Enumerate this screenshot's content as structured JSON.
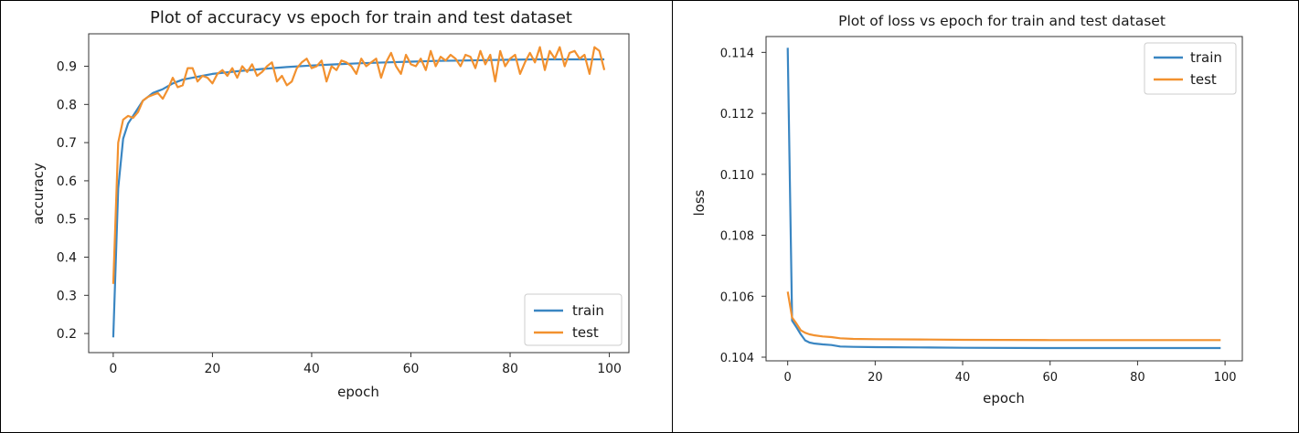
{
  "colors": {
    "train": "#3a86c2",
    "test": "#f2912f"
  },
  "charts": [
    {
      "id": "accuracy",
      "type": "line",
      "title": "Plot of accuracy vs epoch for train and test dataset",
      "xlabel": "epoch",
      "ylabel": "accuracy",
      "xlim": [
        -4.95,
        103.95
      ],
      "ylim": [
        0.15,
        0.985
      ],
      "xticks": [
        0,
        20,
        40,
        60,
        80,
        100
      ],
      "yticks": [
        0.2,
        0.3,
        0.4,
        0.5,
        0.6,
        0.7,
        0.8,
        0.9
      ],
      "ytick_labels": [
        "0.2",
        "0.3",
        "0.4",
        "0.5",
        "0.6",
        "0.7",
        "0.8",
        "0.9"
      ],
      "legend": {
        "position": "lower-right",
        "entries": [
          "train",
          "test"
        ]
      },
      "series": [
        {
          "name": "train",
          "color_key": "train",
          "x": [
            0,
            1,
            2,
            3,
            4,
            5,
            6,
            7,
            8,
            9,
            10,
            12,
            14,
            16,
            18,
            20,
            25,
            30,
            35,
            40,
            45,
            50,
            55,
            60,
            65,
            70,
            75,
            80,
            85,
            90,
            95,
            99
          ],
          "y": [
            0.19,
            0.58,
            0.71,
            0.75,
            0.77,
            0.79,
            0.81,
            0.82,
            0.83,
            0.835,
            0.84,
            0.855,
            0.865,
            0.87,
            0.875,
            0.88,
            0.887,
            0.893,
            0.898,
            0.902,
            0.905,
            0.908,
            0.91,
            0.912,
            0.914,
            0.915,
            0.916,
            0.917,
            0.918,
            0.918,
            0.918,
            0.918
          ]
        },
        {
          "name": "test",
          "color_key": "test",
          "x": [
            0,
            1,
            2,
            3,
            4,
            5,
            6,
            7,
            8,
            9,
            10,
            11,
            12,
            13,
            14,
            15,
            16,
            17,
            18,
            19,
            20,
            21,
            22,
            23,
            24,
            25,
            26,
            27,
            28,
            29,
            30,
            31,
            32,
            33,
            34,
            35,
            36,
            37,
            38,
            39,
            40,
            41,
            42,
            43,
            44,
            45,
            46,
            47,
            48,
            49,
            50,
            51,
            52,
            53,
            54,
            55,
            56,
            57,
            58,
            59,
            60,
            61,
            62,
            63,
            64,
            65,
            66,
            67,
            68,
            69,
            70,
            71,
            72,
            73,
            74,
            75,
            76,
            77,
            78,
            79,
            80,
            81,
            82,
            83,
            84,
            85,
            86,
            87,
            88,
            89,
            90,
            91,
            92,
            93,
            94,
            95,
            96,
            97,
            98,
            99
          ],
          "y": [
            0.33,
            0.7,
            0.76,
            0.77,
            0.765,
            0.78,
            0.81,
            0.82,
            0.825,
            0.83,
            0.815,
            0.84,
            0.87,
            0.845,
            0.85,
            0.895,
            0.895,
            0.86,
            0.875,
            0.87,
            0.855,
            0.88,
            0.89,
            0.875,
            0.895,
            0.87,
            0.9,
            0.885,
            0.905,
            0.875,
            0.885,
            0.9,
            0.91,
            0.86,
            0.875,
            0.85,
            0.86,
            0.895,
            0.91,
            0.92,
            0.895,
            0.9,
            0.915,
            0.86,
            0.9,
            0.89,
            0.915,
            0.91,
            0.9,
            0.88,
            0.92,
            0.9,
            0.91,
            0.92,
            0.87,
            0.91,
            0.935,
            0.9,
            0.88,
            0.93,
            0.905,
            0.9,
            0.92,
            0.89,
            0.94,
            0.9,
            0.925,
            0.915,
            0.93,
            0.92,
            0.9,
            0.93,
            0.925,
            0.895,
            0.94,
            0.905,
            0.93,
            0.86,
            0.94,
            0.9,
            0.92,
            0.93,
            0.88,
            0.91,
            0.935,
            0.91,
            0.95,
            0.89,
            0.94,
            0.92,
            0.95,
            0.9,
            0.935,
            0.94,
            0.92,
            0.93,
            0.88,
            0.95,
            0.94,
            0.89
          ]
        }
      ]
    },
    {
      "id": "loss",
      "type": "line",
      "title": "Plot of loss vs epoch for train and test dataset",
      "xlabel": "epoch",
      "ylabel": "loss",
      "xlim": [
        -4.95,
        103.95
      ],
      "ylim": [
        0.10388,
        0.11452
      ],
      "xticks": [
        0,
        20,
        40,
        60,
        80,
        100
      ],
      "yticks": [
        0.104,
        0.106,
        0.108,
        0.11,
        0.112,
        0.114
      ],
      "ytick_labels": [
        "0.104",
        "0.106",
        "0.108",
        "0.110",
        "0.112",
        "0.114"
      ],
      "legend": {
        "position": "upper-right",
        "entries": [
          "train",
          "test"
        ]
      },
      "series": [
        {
          "name": "train",
          "color_key": "train",
          "x": [
            0,
            1,
            2,
            3,
            4,
            5,
            6,
            8,
            10,
            12,
            15,
            20,
            30,
            40,
            60,
            80,
            99
          ],
          "y": [
            0.11415,
            0.1052,
            0.10498,
            0.10475,
            0.10455,
            0.10448,
            0.10445,
            0.10442,
            0.1044,
            0.10435,
            0.10434,
            0.10433,
            0.10432,
            0.10431,
            0.1043,
            0.1043,
            0.1043
          ]
        },
        {
          "name": "test",
          "color_key": "test",
          "x": [
            0,
            1,
            2,
            3,
            4,
            5,
            6,
            8,
            10,
            12,
            15,
            20,
            30,
            40,
            60,
            80,
            99
          ],
          "y": [
            0.10615,
            0.1053,
            0.1051,
            0.10488,
            0.1048,
            0.10475,
            0.10472,
            0.10468,
            0.10466,
            0.10462,
            0.1046,
            0.10459,
            0.10458,
            0.10457,
            0.10456,
            0.10456,
            0.10456
          ]
        }
      ]
    }
  ]
}
